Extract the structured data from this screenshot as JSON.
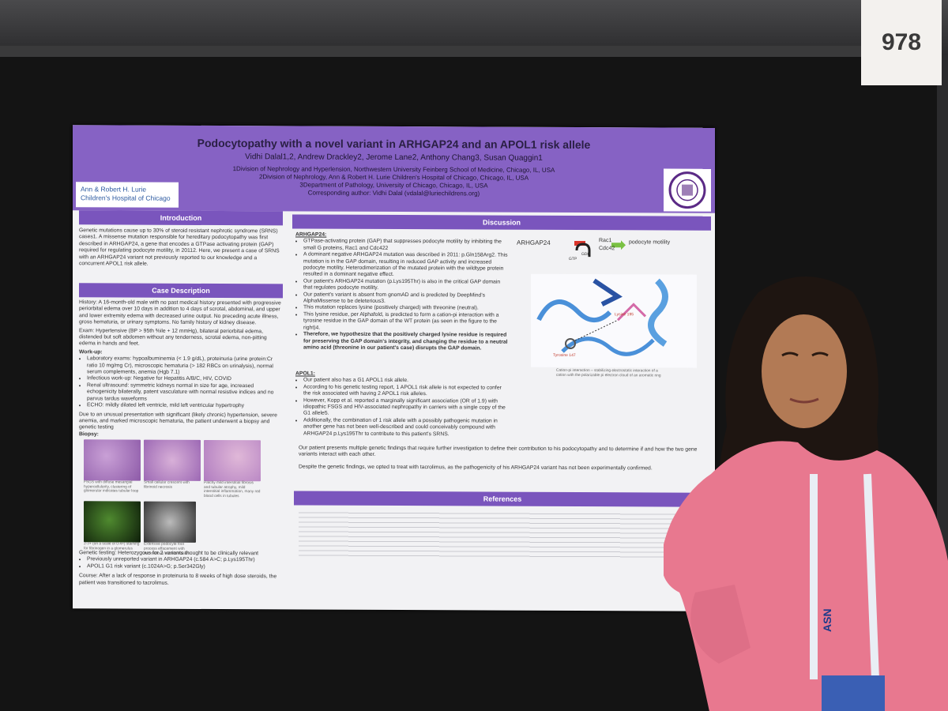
{
  "sign": "978",
  "poster": {
    "title": "Podocytopathy with a novel variant in ARHGAP24 and an APOL1 risk allele",
    "authors": "Vidhi Dalal1,2, Andrew Drackley2, Jerome Lane2, Anthony Chang3, Susan Quaggin1",
    "affiliations": [
      "1Division of Nephrology and Hyperlension, Northwestern University Feinberg School of Medicine, Chicago, IL, USA",
      "2Division of Nephrology, Ann & Robert H. Lurie Children's Hospital of Chicago, Chicago, IL, USA",
      "3Department of Pathology, University of Chicago, Chicago, IL, USA",
      "Corresponding author: Vidhi Dalal (vdalal@luriechildrens.org)"
    ],
    "logo_left": [
      "Ann & Robert H. Lurie",
      "Children's Hospital of Chicago"
    ],
    "introduction": {
      "heading": "Introduction",
      "text": "Genetic mutations cause up to 30% of steroid resistant nephrotic syndrome (SRNS) cases1. A missense mutation responsible for hereditary podocytopathy was first described in ARHGAP24, a gene that encodes a GTPase activating protein (GAP) required for regulating podocyte motility, in 20112. Here, we present a case of SRNS with an ARHGAP24 variant not previously reported to our knowledge and a concurrent APOL1 risk allele."
    },
    "case": {
      "heading": "Case Description",
      "history": "History: A 16-month-old male with no past medical history presented with progressive periorbital edema over 10 days in addition to 4 days of scrotal, abdominal, and upper and lower extremity edema with decreased urine output. No preceding acute illness, gross hematuria, or urinary symptoms. No family history of kidney disease.",
      "exam": "Exam: Hypertensive (BP > 95th %ile + 12 mmHg), bilateral periorbital edema, distended but soft abdomen without any tenderness, scrotal edema, non-pitting edema in hands and feet.",
      "workup_label": "Work-up:",
      "workup": [
        "Laboratory exams: hypoalbuminemia (< 1.9 g/dL), proteinuria (urine protein:Cr ratio 10 mg/mg Cr), microscopic hematuria (> 182 RBCs on urinalysis), normal serum complements, anemia (Hgb 7.1)",
        "Infectious work-up: Negative for Hepatitis A/B/C, HIV, COVID",
        "Renal ultrasound: symmetric kidneys normal in size for age, increased echogenicity bilaterally, patent vasculature with normal resistive indices and no parvus tardus waveforms",
        "ECHO: mildly dilated left ventricle, mild left ventricular hypertrophy"
      ],
      "summary": "Due to an unusual presentation with significant (likely chronic) hypertension, severe anemia, and marked microscopic hematuria, the patient underwent a biopsy and genetic testing",
      "biopsy_label": "Biopsy:",
      "biopsy_captions": [
        "FSGS with diffuse mesangial hypercellularity, clustering of glomerular indicates tubular loop",
        "Small cellular crescent with fibrinoid necrosis",
        "Patchy mild interstitial fibrosis and tubular atrophy, mild interstitial inflammation, many red blood cells in tubules",
        "2-3+ (on a scale of 0-4+) staining for fibrinogen in a glomerulus",
        "Extensive podocyte foot process effacement with microvillous transformation"
      ],
      "genetic": "Genetic testing: Heterozygous for 2 variants thought to be clinically relevant",
      "genetic_items": [
        "Previously unreported variant in ARHGAP24 (c.584 A>C; p.Lys195Thr)",
        "APOL1 G1 risk variant (c.1024A>G; p.Ser342Gly)"
      ],
      "course": "Course: After a lack of response in proteinuria to 8 weeks of high dose steroids, the patient was transitioned to tacrolimus."
    },
    "discussion": {
      "heading": "Discussion",
      "arhgap_label": "ARHGAP24:",
      "arhgap_items": [
        "GTPase-activating protein (GAP) that suppresses podocyte motility by inhibiting the small G proteins, Rac1 and Cdc422",
        "A dominant negative ARHGAP24 mutation was described in 2011: p.Gln158Arg2. This mutation is in the GAP domain, resulting in reduced GAP activity and increased podocyte motility. Heterodimerization of the mutated protein with the wildtype protein resulted in a dominant negative effect.",
        "Our patient's ARHGAP24 mutation (p.Lys195Thr) is also in the critical GAP domain that regulates podocyte motility.",
        "Our patient's variant is absent from gnomAD and is predicted by DeepMind's AlphaMissense to be deleterious3.",
        "This mutation replaces lysine (positively charged) with threonine (neutral).",
        "This lysine residue, per Alphafold, is predicted to form a cation-pi interaction with a tyrosine residue in the GAP domain of the WT protein (as seen in the figure to the right)4.",
        "Therefore, we hypothesize that the positively charged lysine residue is required for preserving the GAP domain's integrity, and changing the residue to a neutral amino acid (threonine in our patient's case) disrupts the GAP domain."
      ],
      "apol_label": "APOL1:",
      "apol_items": [
        "Our patient also has a G1 APOL1 risk allele.",
        "According to his genetic testing report, 1 APOL1 risk allele is not expected to confer the risk associated with having 2 APOL1 risk alleles.",
        "However, Kopp et al. reported a marginally significant association (OR of 1.9) with idiopathic FSGS and HIV-associated nephropathy in carriers with a single copy of the G1 allele5.",
        "Additionally, the combination of 1 risk allele with a possibly pathogenic mutation in another gene has not been well-described and could conceivably compound with ARHGAP24 p.Lys195Thr to contribute to this patient's SRNS."
      ],
      "conclusion": "Our patient presents multiple genetic findings that require further investigation to define their contribution to his podocytopathy and to determine if and how the two gene variants interact with each other.",
      "treatment": "Despite the genetic findings, we opted to treat with tacrolimus, as the pathogenicity of his ARHGAP24 variant has not been experimentally confirmed.",
      "figure": {
        "gene": "ARHGAP24",
        "targets": [
          "Rac1",
          "Cdc42"
        ],
        "effect": "podocyte motility",
        "gtp": "GTP",
        "gdp": "GDP",
        "lysine": "Lysine 195",
        "tyrosine": "Tyrosine 147",
        "caption": "Cation-pi interaction – stabilizing electrostatic interaction of a cation with the polarizable pi electron cloud of an aromatic ring"
      }
    },
    "references": {
      "heading": "References"
    }
  },
  "lanyard": "ASN"
}
